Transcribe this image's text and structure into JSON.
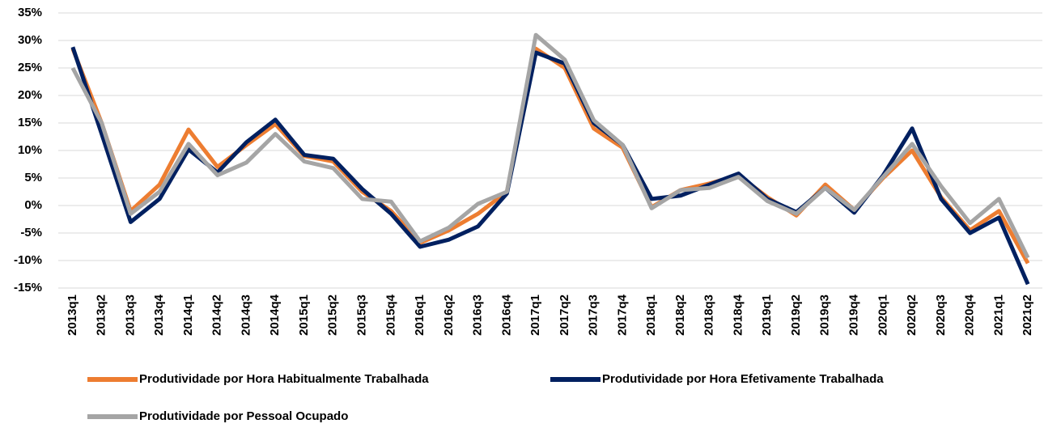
{
  "chart_data": {
    "type": "line",
    "categories": [
      "2013q1",
      "2013q2",
      "2013q3",
      "2013q4",
      "2014q1",
      "2014q2",
      "2014q3",
      "2014q4",
      "2015q1",
      "2015q2",
      "2015q3",
      "2015q4",
      "2016q1",
      "2016q2",
      "2016q3",
      "2016q4",
      "2017q1",
      "2017q2",
      "2017q3",
      "2017q4",
      "2018q1",
      "2018q2",
      "2018q3",
      "2018q4",
      "2019q1",
      "2019q2",
      "2019q3",
      "2019q4",
      "2020q1",
      "2020q2",
      "2020q3",
      "2020q4",
      "2021q1",
      "2021q2"
    ],
    "series": [
      {
        "name": "Produtividade por Hora Habitualmente Trabalhada",
        "color": "#ed7d31",
        "values": [
          28.5,
          15,
          -1,
          3.8,
          13.8,
          7,
          11,
          14.8,
          9,
          8,
          2.5,
          -1,
          -6.8,
          -4.5,
          -1.5,
          2.5,
          28.5,
          25,
          14,
          10.5,
          -0.3,
          2.8,
          4,
          5.5,
          1.5,
          -1.8,
          3.8,
          -0.8,
          5,
          10,
          1.5,
          -4.5,
          -1,
          -10.5
        ]
      },
      {
        "name": "Produtividade por Hora Efetivamente Trabalhada",
        "color": "#002060",
        "values": [
          28.8,
          13,
          -3,
          1.2,
          10.2,
          6,
          11.5,
          15.6,
          9.2,
          8.5,
          3,
          -1.5,
          -7.5,
          -6.2,
          -3.8,
          2.2,
          27.8,
          25.8,
          15,
          11,
          1.2,
          1.8,
          3.8,
          5.8,
          1.2,
          -1.2,
          3.2,
          -1.3,
          5.5,
          14,
          1.2,
          -5,
          -2.2,
          -14.3
        ]
      },
      {
        "name": "Produtividade por Pessoal Ocupado",
        "color": "#a5a5a5",
        "values": [
          25,
          15,
          -1.5,
          2.5,
          11.2,
          5.5,
          7.8,
          13,
          8,
          6.8,
          1.2,
          0.7,
          -6.5,
          -4,
          0.3,
          2.5,
          31,
          26.5,
          15.5,
          11,
          -0.5,
          2.8,
          3.2,
          5.2,
          0.8,
          -1.5,
          3.2,
          -0.8,
          5.2,
          11.2,
          3.5,
          -3.2,
          1.2,
          -9.5
        ]
      }
    ],
    "ylim": [
      -15,
      35
    ],
    "yticks": [
      {
        "value": -15,
        "label": "-15%"
      },
      {
        "value": -10,
        "label": "-10%"
      },
      {
        "value": -5,
        "label": "-5%"
      },
      {
        "value": 0,
        "label": "0%"
      },
      {
        "value": 5,
        "label": "5%"
      },
      {
        "value": 10,
        "label": "10%"
      },
      {
        "value": 15,
        "label": "15%"
      },
      {
        "value": 20,
        "label": "20%"
      },
      {
        "value": 25,
        "label": "25%"
      },
      {
        "value": 30,
        "label": "30%"
      },
      {
        "value": 35,
        "label": "35%"
      }
    ],
    "grid": true
  }
}
